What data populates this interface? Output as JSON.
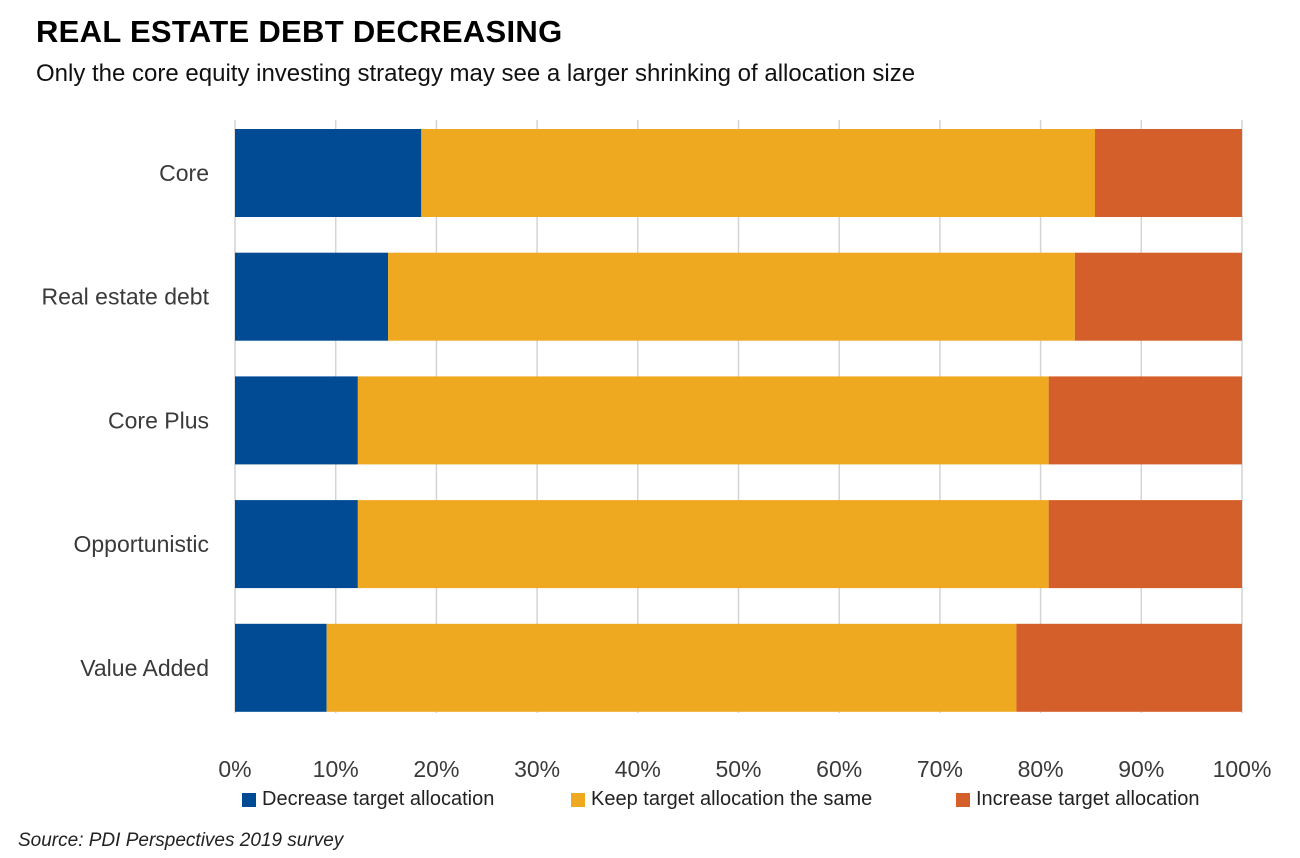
{
  "title": "REAL ESTATE DEBT DECREASING",
  "subtitle": "Only the core equity investing strategy may see a larger shrinking of allocation size",
  "source": "Source: PDI Perspectives 2019 survey",
  "chart_data": {
    "type": "bar",
    "orientation": "horizontal",
    "stacked": true,
    "categories": [
      "Core",
      "Real estate debt",
      "Core Plus",
      "Opportunistic",
      "Value Added"
    ],
    "series": [
      {
        "name": "Decrease target allocation",
        "color": "#004b93",
        "values": [
          18.5,
          15.2,
          12.2,
          12.2,
          9.1
        ]
      },
      {
        "name": "Keep target allocation the same",
        "color": "#efa920",
        "values": [
          66.9,
          68.2,
          68.6,
          68.6,
          68.5
        ]
      },
      {
        "name": "Increase target allocation",
        "color": "#d55f2a",
        "values": [
          14.6,
          16.6,
          19.2,
          19.2,
          22.4
        ]
      }
    ],
    "xlim": [
      0,
      100
    ],
    "xticks": [
      "0%",
      "10%",
      "20%",
      "30%",
      "40%",
      "50%",
      "60%",
      "70%",
      "80%",
      "90%",
      "100%"
    ],
    "grid": true,
    "legend": "bottom"
  }
}
